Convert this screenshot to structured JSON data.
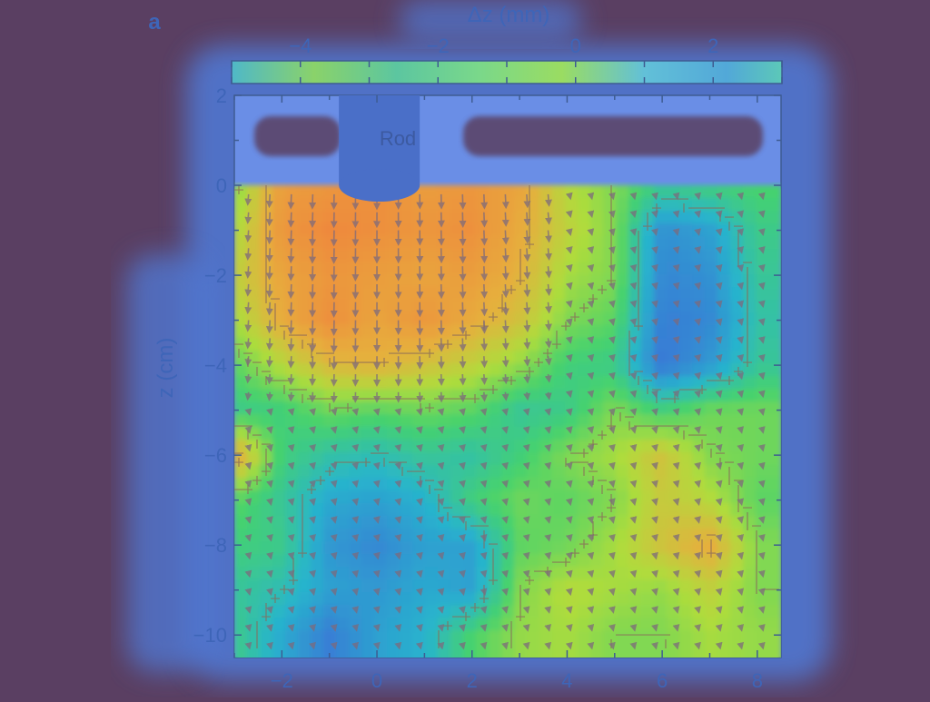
{
  "panel_label": "a",
  "colorbar": {
    "label": "Δz (mm)",
    "ticks": [
      -4,
      -2,
      0,
      2
    ],
    "range": [
      -5.0,
      3.0
    ]
  },
  "rod_label": "Rod",
  "colors": {
    "background": "#5a3f62",
    "axis": "#3e5c92",
    "text": "#3e65b8",
    "contour": "#8a6a5a",
    "arrow": "#7d6a7c"
  },
  "chart_data": {
    "type": "heatmap",
    "title": "",
    "xlabel": "",
    "ylabel": "z (cm)",
    "xlim": [
      -3.0,
      8.5
    ],
    "ylim": [
      -10.5,
      2.0
    ],
    "xticks": [
      -2,
      0,
      2,
      4,
      6,
      8
    ],
    "yticks": [
      2,
      0,
      -2,
      -4,
      -6,
      -8,
      -10
    ],
    "value_range": [
      -5.0,
      3.0
    ],
    "grid": false,
    "rod": {
      "x_range": [
        -0.8,
        0.9
      ],
      "z_range": [
        0.0,
        2.0
      ]
    },
    "x": [
      -3,
      -2,
      -1,
      0,
      1,
      2,
      3,
      4,
      5,
      6,
      7,
      8
    ],
    "z": [
      0,
      -1,
      -2,
      -3,
      -4,
      -5,
      -6,
      -7,
      -8,
      -9,
      -10
    ],
    "values": [
      [
        -3.0,
        -4.1,
        -4.2,
        -4.3,
        -4.1,
        -4.2,
        -4.0,
        -3.3,
        -3.0,
        -2.5,
        -2.6,
        -2.7
      ],
      [
        -3.2,
        -4.2,
        -4.4,
        -4.3,
        -4.2,
        -4.3,
        -3.9,
        -3.4,
        -3.0,
        -1.6,
        -1.8,
        -2.5
      ],
      [
        -3.4,
        -4.0,
        -4.2,
        -4.1,
        -4.0,
        -4.1,
        -3.8,
        -3.2,
        -3.0,
        -1.5,
        -1.6,
        -2.4
      ],
      [
        -3.2,
        -3.9,
        -4.3,
        -4.0,
        -4.2,
        -3.9,
        -3.6,
        -3.0,
        -2.8,
        -1.4,
        -1.5,
        -2.3
      ],
      [
        -2.8,
        -3.3,
        -3.7,
        -3.8,
        -3.6,
        -3.4,
        -3.1,
        -2.6,
        -2.5,
        -1.3,
        -1.7,
        -2.4
      ],
      [
        -2.5,
        -2.6,
        -2.9,
        -2.8,
        -2.9,
        -2.8,
        -2.4,
        -2.5,
        -3.0,
        -2.6,
        -2.9,
        -2.9
      ],
      [
        -4.0,
        -2.6,
        -2.3,
        -2.2,
        -2.4,
        -2.3,
        -2.6,
        -3.0,
        -3.2,
        -3.6,
        -3.0,
        -2.9
      ],
      [
        -2.8,
        -2.4,
        -1.9,
        -1.8,
        -2.0,
        -2.6,
        -2.9,
        -2.8,
        -3.0,
        -3.5,
        -3.3,
        -2.8
      ],
      [
        -2.6,
        -2.5,
        -1.7,
        -1.5,
        -1.8,
        -1.8,
        -2.8,
        -2.9,
        -3.2,
        -3.6,
        -3.9,
        -3.0
      ],
      [
        -2.4,
        -2.2,
        -1.8,
        -1.7,
        -1.9,
        -1.8,
        -3.0,
        -3.3,
        -3.2,
        -3.1,
        -3.4,
        -3.0
      ],
      [
        -2.5,
        -1.9,
        -1.4,
        -1.8,
        -2.0,
        -2.7,
        -3.1,
        -3.2,
        -3.0,
        -3.0,
        -3.2,
        -3.1
      ]
    ]
  }
}
